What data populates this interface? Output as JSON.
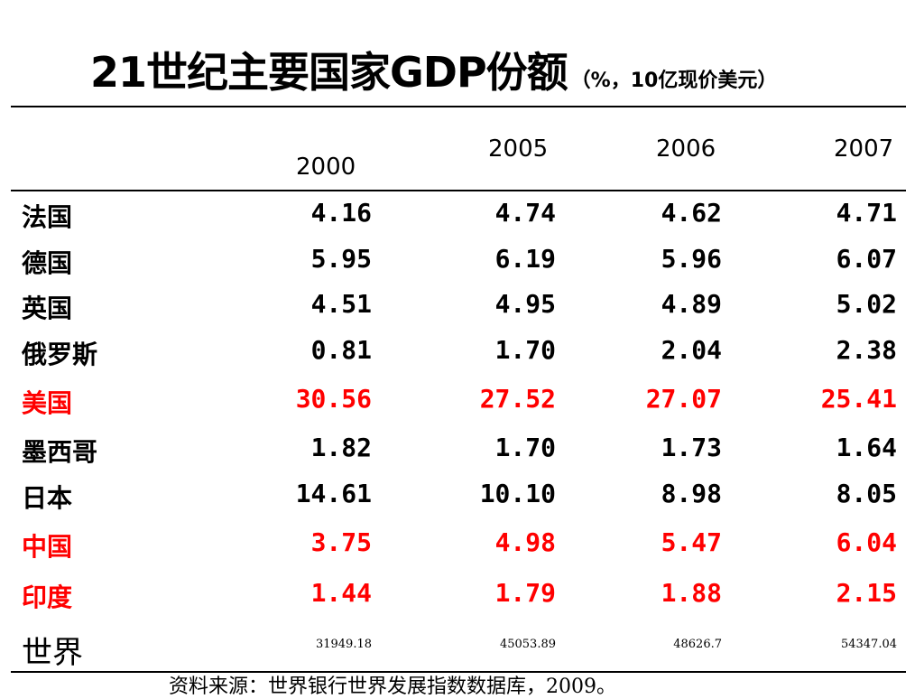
{
  "title": {
    "main": "21世纪主要国家GDP份额",
    "sub": "（%，10亿现价美元）"
  },
  "columns": [
    "2000",
    "2005",
    "2006",
    "2007"
  ],
  "rows": [
    {
      "name": "法国",
      "values": [
        "4.16",
        "4.74",
        "4.62",
        "4.71"
      ]
    },
    {
      "name": "德国",
      "values": [
        "5.95",
        "6.19",
        "5.96",
        "6.07"
      ]
    },
    {
      "name": "英国",
      "values": [
        "4.51",
        "4.95",
        "4.89",
        "5.02"
      ]
    },
    {
      "name": "俄罗斯",
      "values": [
        "0.81",
        "1.70",
        "2.04",
        "2.38"
      ]
    },
    {
      "name": "美国",
      "values": [
        "30.56",
        "27.52",
        "27.07",
        "25.41"
      ]
    },
    {
      "name": "墨西哥",
      "values": [
        "1.82",
        "1.70",
        "1.73",
        "1.64"
      ]
    },
    {
      "name": "日本",
      "values": [
        "14.61",
        "10.10",
        "8.98",
        "8.05"
      ]
    },
    {
      "name": "中国",
      "values": [
        "3.75",
        "4.98",
        "5.47",
        "6.04"
      ]
    },
    {
      "name": "印度",
      "values": [
        "1.44",
        "1.79",
        "1.88",
        "2.15"
      ]
    },
    {
      "name": "世界",
      "values": [
        "31949.18",
        "45053.89",
        "48626.7",
        "54347.04"
      ]
    }
  ],
  "highlight_color": "#ff0000",
  "source": "资料来源：世界银行世界发展指数数据库，2009。"
}
